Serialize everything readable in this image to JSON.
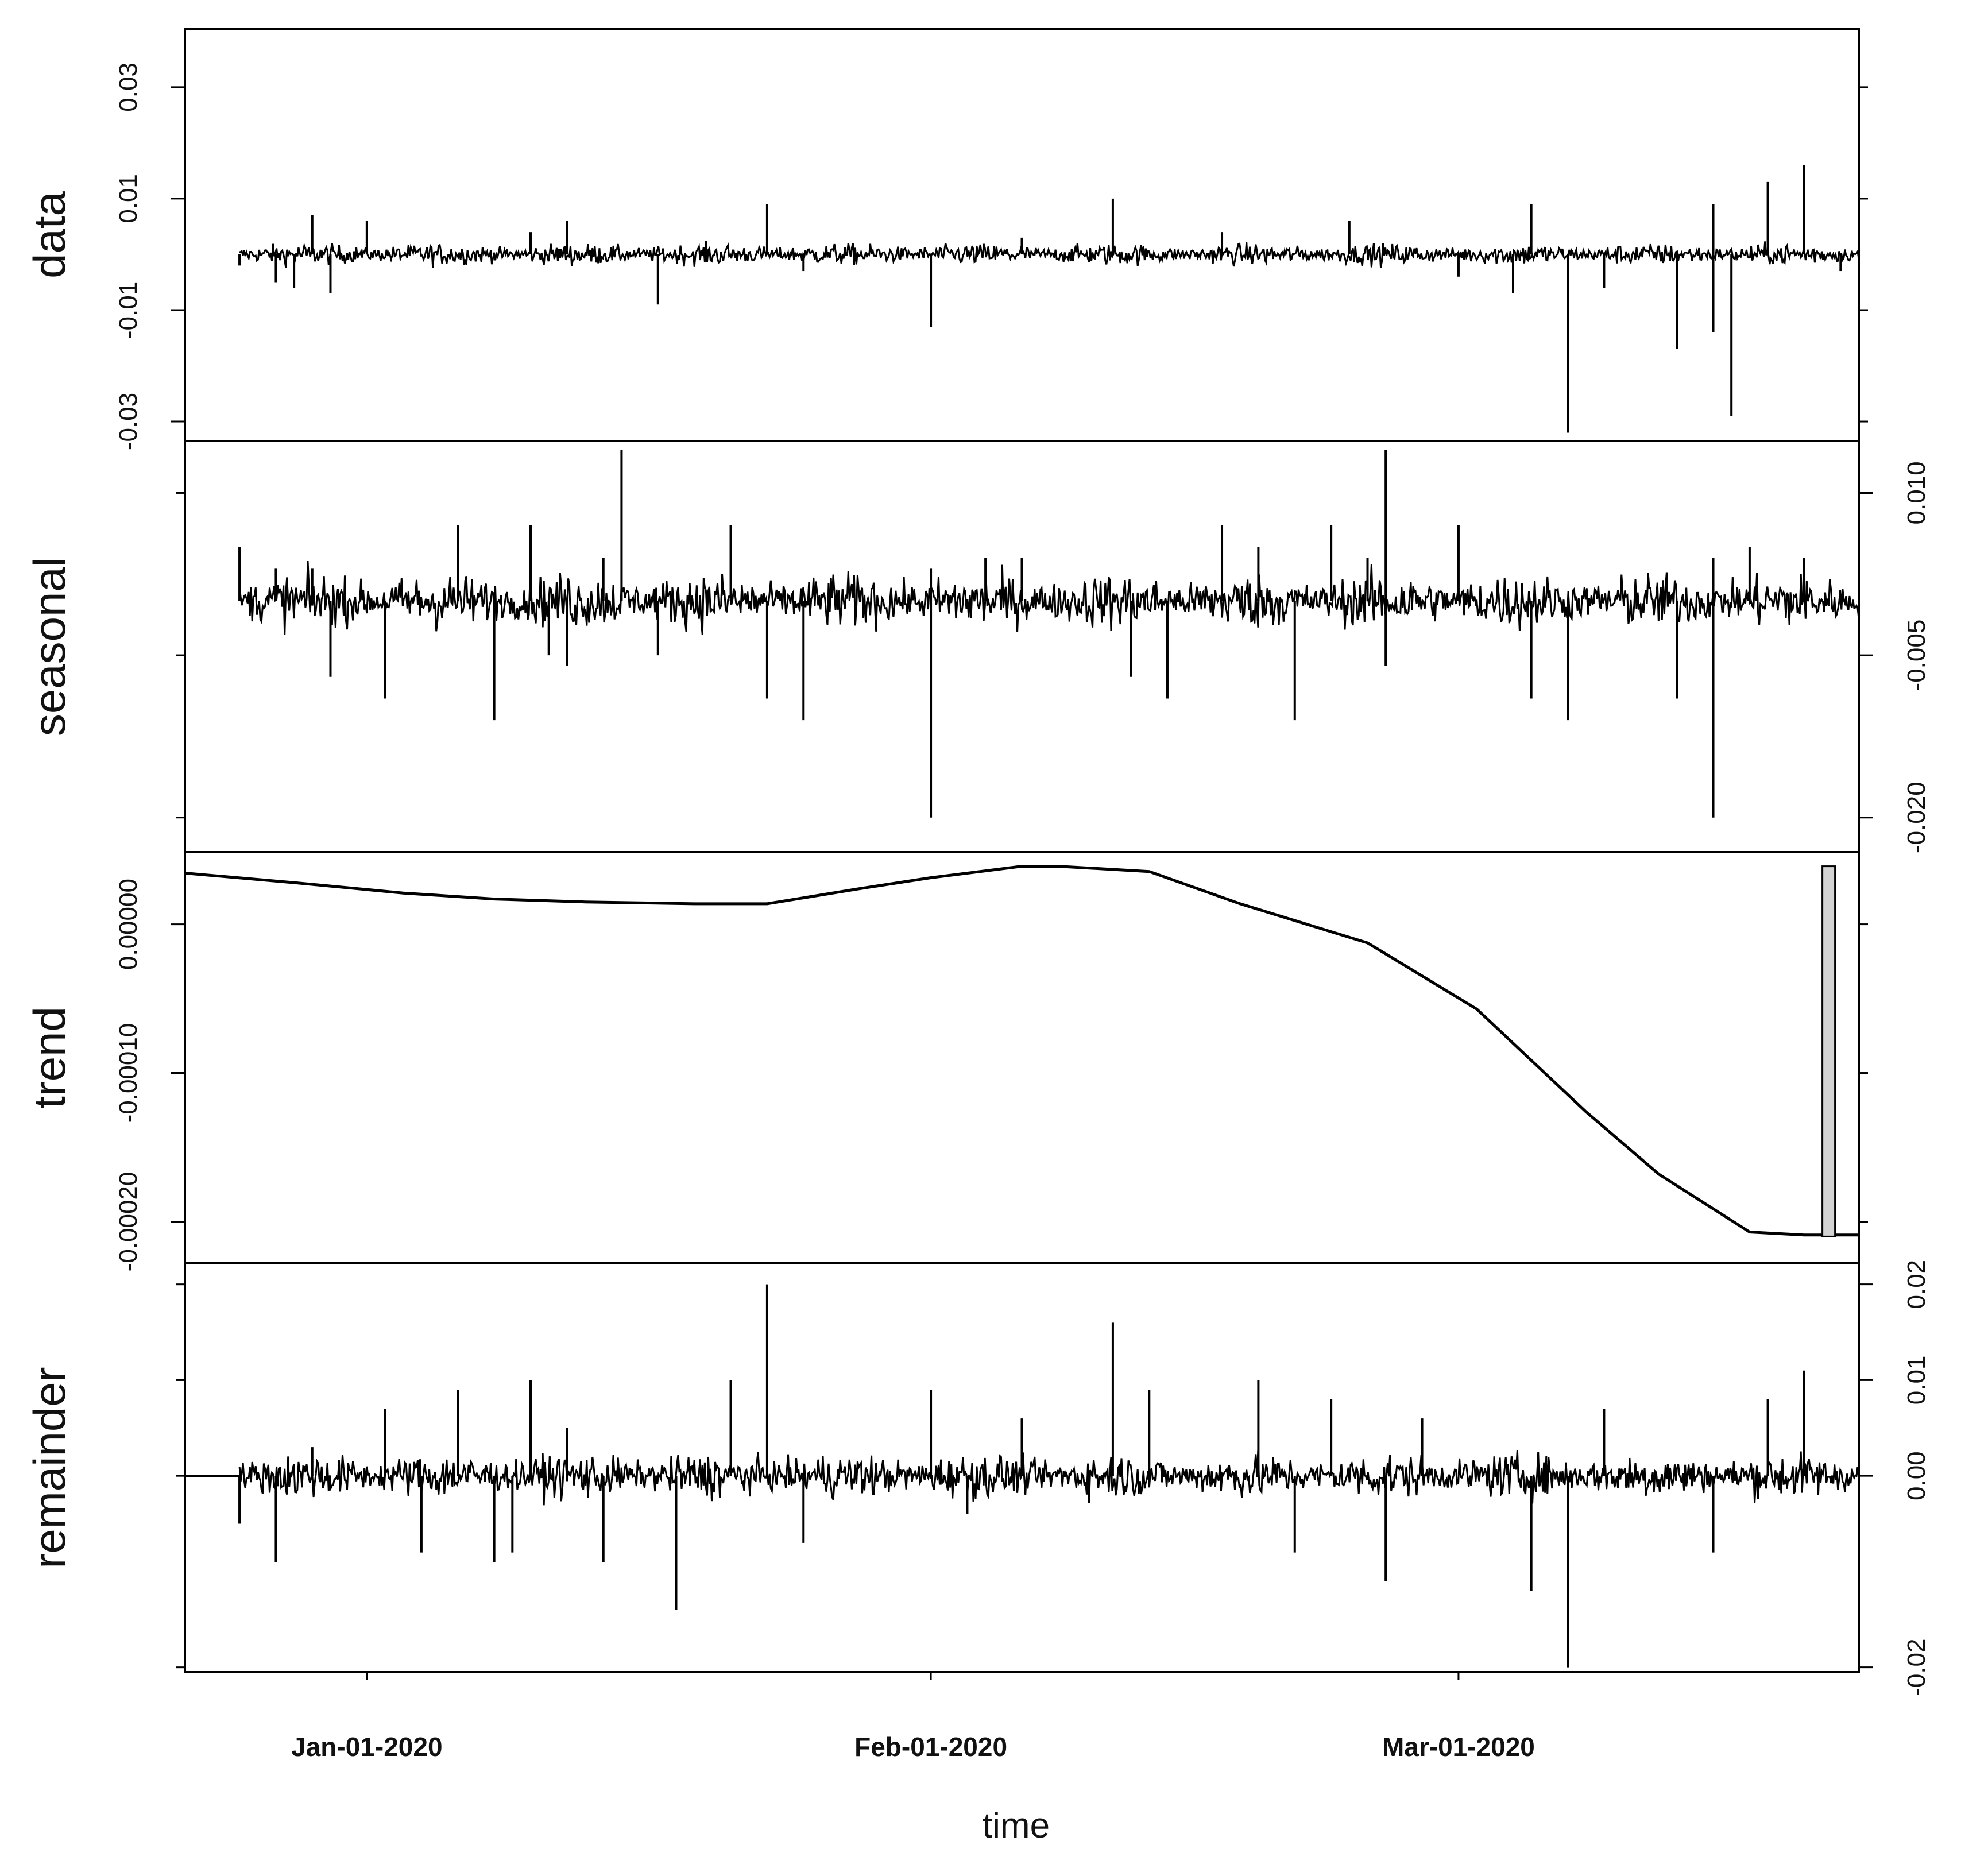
{
  "chart_data": {
    "type": "line",
    "layout": "stacked-panels",
    "grid": false,
    "xlabel": "time",
    "x_tick_labels": [
      "Jan-01-2020",
      "Feb-01-2020",
      "Mar-01-2020"
    ],
    "x_ticks": [
      "2020-01-01",
      "2020-02-01",
      "2020-03-01"
    ],
    "x_range": [
      "2019-12-22",
      "2020-03-23"
    ],
    "colors": {
      "line": "#000000",
      "range_bar": "#d3d3d3",
      "background": "#ffffff"
    },
    "panels": [
      {
        "name": "data",
        "axis_side": "left",
        "yticks": [
          -0.03,
          -0.01,
          0.01,
          0.03
        ],
        "ytick_labels": [
          "-0.03",
          "-0.01",
          "0.01",
          "0.03"
        ],
        "ylim": [
          -0.0335,
          0.0405
        ],
        "baseline": 0.0,
        "noise_level": 0.0009,
        "spikes": [
          {
            "x": "2019-12-25",
            "y": -0.002
          },
          {
            "x": "2019-12-27",
            "y": -0.005
          },
          {
            "x": "2019-12-28",
            "y": -0.006
          },
          {
            "x": "2019-12-29",
            "y": 0.007
          },
          {
            "x": "2019-12-30",
            "y": -0.007
          },
          {
            "x": "2020-01-01",
            "y": 0.006
          },
          {
            "x": "2020-01-10",
            "y": 0.004
          },
          {
            "x": "2020-01-12",
            "y": 0.006
          },
          {
            "x": "2020-01-17",
            "y": -0.009
          },
          {
            "x": "2020-01-23",
            "y": 0.009
          },
          {
            "x": "2020-01-25",
            "y": -0.003
          },
          {
            "x": "2020-02-01",
            "y": -0.013
          },
          {
            "x": "2020-02-06",
            "y": 0.003
          },
          {
            "x": "2020-02-11",
            "y": 0.01
          },
          {
            "x": "2020-02-17",
            "y": 0.004
          },
          {
            "x": "2020-02-24",
            "y": 0.006
          },
          {
            "x": "2020-03-01",
            "y": -0.004
          },
          {
            "x": "2020-03-04",
            "y": -0.007
          },
          {
            "x": "2020-03-05",
            "y": 0.009
          },
          {
            "x": "2020-03-07",
            "y": -0.032
          },
          {
            "x": "2020-03-09",
            "y": -0.006
          },
          {
            "x": "2020-03-13",
            "y": -0.017
          },
          {
            "x": "2020-03-15",
            "y": 0.009
          },
          {
            "x": "2020-03-15",
            "y": -0.014
          },
          {
            "x": "2020-03-16",
            "y": -0.029
          },
          {
            "x": "2020-03-18",
            "y": 0.013
          },
          {
            "x": "2020-03-20",
            "y": 0.016
          },
          {
            "x": "2020-03-22",
            "y": -0.003
          }
        ]
      },
      {
        "name": "seasonal",
        "axis_side": "right",
        "yticks": [
          -0.02,
          -0.005,
          0.01
        ],
        "ytick_labels": [
          "-0.020",
          "-0.005",
          "0.010"
        ],
        "ylim": [
          -0.0232,
          0.0148
        ],
        "baseline": 0.0,
        "noise_level": 0.0012,
        "spikes": [
          {
            "x": "2019-12-25",
            "y": 0.005
          },
          {
            "x": "2019-12-27",
            "y": 0.003
          },
          {
            "x": "2019-12-29",
            "y": 0.003
          },
          {
            "x": "2019-12-30",
            "y": -0.007
          },
          {
            "x": "2020-01-02",
            "y": -0.009
          },
          {
            "x": "2020-01-06",
            "y": 0.007
          },
          {
            "x": "2020-01-08",
            "y": -0.011
          },
          {
            "x": "2020-01-10",
            "y": 0.007
          },
          {
            "x": "2020-01-11",
            "y": -0.005
          },
          {
            "x": "2020-01-12",
            "y": -0.006
          },
          {
            "x": "2020-01-14",
            "y": 0.004
          },
          {
            "x": "2020-01-15",
            "y": 0.014
          },
          {
            "x": "2020-01-17",
            "y": -0.005
          },
          {
            "x": "2020-01-21",
            "y": 0.007
          },
          {
            "x": "2020-01-23",
            "y": -0.009
          },
          {
            "x": "2020-01-25",
            "y": -0.011
          },
          {
            "x": "2020-02-01",
            "y": 0.003
          },
          {
            "x": "2020-02-01",
            "y": -0.02
          },
          {
            "x": "2020-02-04",
            "y": 0.004
          },
          {
            "x": "2020-02-06",
            "y": 0.004
          },
          {
            "x": "2020-02-12",
            "y": -0.007
          },
          {
            "x": "2020-02-14",
            "y": -0.009
          },
          {
            "x": "2020-02-17",
            "y": 0.007
          },
          {
            "x": "2020-02-19",
            "y": 0.005
          },
          {
            "x": "2020-02-21",
            "y": -0.011
          },
          {
            "x": "2020-02-23",
            "y": 0.007
          },
          {
            "x": "2020-02-25",
            "y": 0.004
          },
          {
            "x": "2020-02-26",
            "y": 0.014
          },
          {
            "x": "2020-02-26",
            "y": -0.006
          },
          {
            "x": "2020-03-01",
            "y": 0.007
          },
          {
            "x": "2020-03-05",
            "y": -0.009
          },
          {
            "x": "2020-03-07",
            "y": -0.011
          },
          {
            "x": "2020-03-13",
            "y": -0.009
          },
          {
            "x": "2020-03-15",
            "y": -0.02
          },
          {
            "x": "2020-03-15",
            "y": 0.004
          },
          {
            "x": "2020-03-17",
            "y": 0.005
          },
          {
            "x": "2020-03-20",
            "y": 0.004
          }
        ]
      },
      {
        "name": "trend",
        "axis_side": "left",
        "yticks": [
          -0.0002,
          -0.0001,
          0.0
        ],
        "ytick_labels": [
          "-0.00020",
          "-0.00010",
          "0.00000"
        ],
        "ylim": [
          -0.000228,
          4.85e-05
        ],
        "range_bar": {
          "x": "2020-03-21",
          "y_top": 3.9e-05,
          "y_bottom": -0.00021
        },
        "line": [
          {
            "x": "2019-12-22",
            "y": 3.44e-05
          },
          {
            "x": "2019-12-28",
            "y": 2.8e-05
          },
          {
            "x": "2020-01-03",
            "y": 2.1e-05
          },
          {
            "x": "2020-01-08",
            "y": 1.7e-05
          },
          {
            "x": "2020-01-13",
            "y": 1.5e-05
          },
          {
            "x": "2020-01-19",
            "y": 1.38e-05
          },
          {
            "x": "2020-01-23",
            "y": 1.38e-05
          },
          {
            "x": "2020-01-28",
            "y": 2.38e-05
          },
          {
            "x": "2020-02-01",
            "y": 3.13e-05
          },
          {
            "x": "2020-02-06",
            "y": 3.9e-05
          },
          {
            "x": "2020-02-08",
            "y": 3.9e-05
          },
          {
            "x": "2020-02-13",
            "y": 3.55e-05
          },
          {
            "x": "2020-02-18",
            "y": 1.38e-05
          },
          {
            "x": "2020-02-25",
            "y": -1.25e-05
          },
          {
            "x": "2020-03-02",
            "y": -5.7e-05
          },
          {
            "x": "2020-03-08",
            "y": -0.000126
          },
          {
            "x": "2020-03-12",
            "y": -0.000168
          },
          {
            "x": "2020-03-17",
            "y": -0.000207
          },
          {
            "x": "2020-03-20",
            "y": -0.000209
          },
          {
            "x": "2020-03-23",
            "y": -0.000209
          }
        ]
      },
      {
        "name": "remainder",
        "axis_side": "right",
        "yticks": [
          -0.02,
          0.0,
          0.01,
          0.02
        ],
        "ytick_labels": [
          "-0.02",
          "0.00",
          "0.01",
          "0.02"
        ],
        "ylim": [
          -0.0205,
          0.0222
        ],
        "baseline": 0.0,
        "noise_level": 0.0011,
        "lead_in": {
          "x_from": "2019-12-22",
          "x_to": "2019-12-25",
          "y": 0.0
        },
        "spikes": [
          {
            "x": "2019-12-25",
            "y": -0.005
          },
          {
            "x": "2019-12-27",
            "y": -0.009
          },
          {
            "x": "2019-12-29",
            "y": 0.003
          },
          {
            "x": "2020-01-02",
            "y": 0.007
          },
          {
            "x": "2020-01-04",
            "y": -0.008
          },
          {
            "x": "2020-01-06",
            "y": 0.009
          },
          {
            "x": "2020-01-08",
            "y": -0.009
          },
          {
            "x": "2020-01-09",
            "y": -0.008
          },
          {
            "x": "2020-01-10",
            "y": 0.01
          },
          {
            "x": "2020-01-12",
            "y": 0.005
          },
          {
            "x": "2020-01-14",
            "y": -0.009
          },
          {
            "x": "2020-01-18",
            "y": -0.014
          },
          {
            "x": "2020-01-21",
            "y": 0.01
          },
          {
            "x": "2020-01-23",
            "y": 0.02
          },
          {
            "x": "2020-01-25",
            "y": -0.007
          },
          {
            "x": "2020-02-01",
            "y": 0.009
          },
          {
            "x": "2020-02-03",
            "y": -0.004
          },
          {
            "x": "2020-02-06",
            "y": 0.006
          },
          {
            "x": "2020-02-11",
            "y": 0.016
          },
          {
            "x": "2020-02-13",
            "y": 0.009
          },
          {
            "x": "2020-02-19",
            "y": 0.01
          },
          {
            "x": "2020-02-21",
            "y": -0.008
          },
          {
            "x": "2020-02-23",
            "y": 0.008
          },
          {
            "x": "2020-02-26",
            "y": -0.011
          },
          {
            "x": "2020-02-28",
            "y": 0.006
          },
          {
            "x": "2020-03-05",
            "y": -0.012
          },
          {
            "x": "2020-03-07",
            "y": -0.02
          },
          {
            "x": "2020-03-09",
            "y": 0.007
          },
          {
            "x": "2020-03-15",
            "y": -0.008
          },
          {
            "x": "2020-03-18",
            "y": 0.008
          },
          {
            "x": "2020-03-20",
            "y": 0.011
          }
        ]
      }
    ]
  }
}
